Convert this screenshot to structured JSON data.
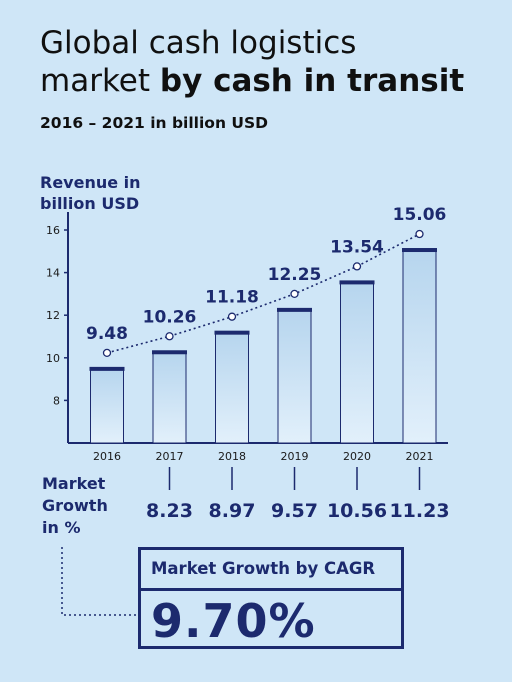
{
  "title_line1": "Global cash logistics",
  "title_line2_regular": "market ",
  "title_line2_bold": "by cash in transit",
  "subtitle": "2016 – 2021 in billion USD",
  "ylabel_line1": "Revenue in",
  "ylabel_line2": "billion USD",
  "growth_label_line1": "Market",
  "growth_label_line2": "Growth",
  "growth_label_line3": "in %",
  "cagr": {
    "label": "Market Growth by CAGR",
    "value": "9.70%"
  },
  "colors": {
    "navy": "#1c2a6e",
    "background": "#cfe6f7",
    "bar_fill_top": "#b6d5ee",
    "bar_fill_bottom": "#e2f0fb"
  },
  "chart_data": {
    "type": "bar",
    "categories": [
      "2016",
      "2017",
      "2018",
      "2019",
      "2020",
      "2021"
    ],
    "values": [
      9.48,
      10.26,
      11.18,
      12.25,
      13.54,
      15.06
    ],
    "value_labels": [
      "9.48",
      "10.26",
      "11.18",
      "12.25",
      "13.54",
      "15.06"
    ],
    "growth_values": [
      null,
      8.23,
      8.97,
      9.57,
      10.56,
      11.23
    ],
    "growth_labels": [
      "",
      "8.23",
      "8.97",
      "9.57",
      "10.56",
      "11.23"
    ],
    "yticks": [
      8,
      10,
      12,
      14,
      16
    ],
    "ylim": [
      6,
      16
    ],
    "title": "Global cash logistics market by cash in transit",
    "subtitle": "2016 – 2021 in billion USD",
    "ylabel": "Revenue in billion USD",
    "xlabel": "",
    "trend_line": "dotted",
    "grid": false
  }
}
